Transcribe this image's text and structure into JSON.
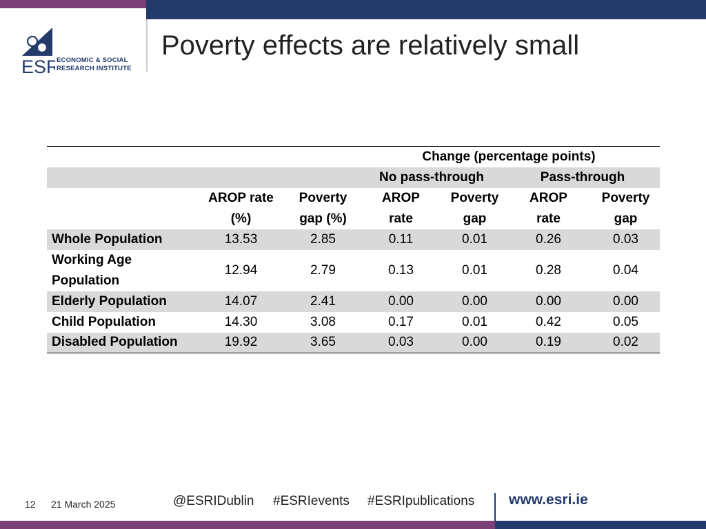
{
  "brand": {
    "logo_letters": "ESRI",
    "logo_line1": "ECONOMIC & SOCIAL",
    "logo_line2": "RESEARCH INSTITUTE",
    "navy": "#233a6b",
    "purple": "#7b3f78"
  },
  "slide": {
    "title": "Poverty effects are relatively small"
  },
  "table": {
    "group_header": "Change (percentage points)",
    "subgroups": [
      "No pass-through",
      "Pass-through"
    ],
    "column_headers": [
      [
        "AROP rate",
        "(%)"
      ],
      [
        "Poverty",
        "gap (%)"
      ],
      [
        "AROP",
        "rate"
      ],
      [
        "Poverty",
        "gap"
      ],
      [
        "AROP",
        "rate"
      ],
      [
        "Poverty",
        "gap"
      ]
    ],
    "rows": [
      {
        "label": "Whole Population",
        "values": [
          "13.53",
          "2.85",
          "0.11",
          "0.01",
          "0.26",
          "0.03"
        ]
      },
      {
        "label": "Working Age Population",
        "values": [
          "12.94",
          "2.79",
          "0.13",
          "0.01",
          "0.28",
          "0.04"
        ]
      },
      {
        "label": "Elderly Population",
        "values": [
          "14.07",
          "2.41",
          "0.00",
          "0.00",
          "0.00",
          "0.00"
        ]
      },
      {
        "label": "Child Population",
        "values": [
          "14.30",
          "3.08",
          "0.17",
          "0.01",
          "0.42",
          "0.05"
        ]
      },
      {
        "label": "Disabled Population",
        "values": [
          "19.92",
          "3.65",
          "0.03",
          "0.00",
          "0.19",
          "0.02"
        ]
      }
    ]
  },
  "footer": {
    "page_number": "12",
    "date": "21 March 2025",
    "social": [
      "@ESRIDublin",
      "#ESRIevents",
      "#ESRIpublications"
    ],
    "url": "www.esri.ie"
  }
}
